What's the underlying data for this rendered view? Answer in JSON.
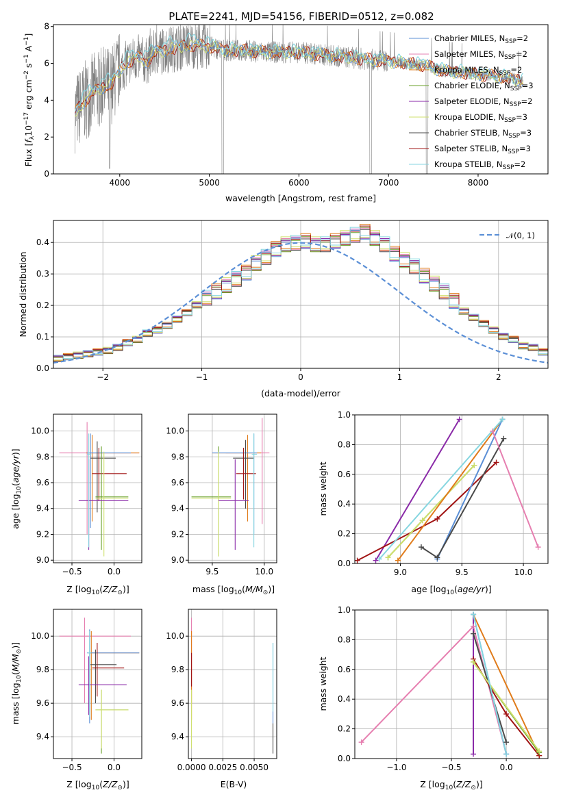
{
  "title": "PLATE=2241, MJD=54156, FIBERID=0512, z=0.082",
  "colors": {
    "Chabrier MILES": "#5b8fd6",
    "Salpeter MILES": "#e67fb0",
    "Kroupa MILES": "#e07b1a",
    "Chabrier ELODIE": "#6aa02a",
    "Salpeter ELODIE": "#8a2aa8",
    "Kroupa ELODIE": "#cfe06e",
    "Chabrier STELIB": "#4a4a4a",
    "Salpeter STELIB": "#a11414",
    "Kroupa STELIB": "#86d6e0",
    "data": "#808080",
    "normal": "#5b8fd6",
    "grid": "#b0b0b0"
  },
  "chart_data": [
    {
      "id": "spectrum",
      "type": "line",
      "xlabel": "wavelength [Angstrom, rest frame]",
      "ylabel": "Flux [f_λ10^-17 erg cm^-2 s^-1 A^-1]",
      "xlim": [
        3260,
        8780
      ],
      "ylim": [
        0,
        8.1
      ],
      "xticks": [
        "4000",
        "5000",
        "6000",
        "7000",
        "8000"
      ],
      "xtick_values": [
        4000,
        5000,
        6000,
        7000,
        8000
      ],
      "yticks": [
        "0",
        "2",
        "4",
        "6",
        "8"
      ],
      "ytick_values": [
        0,
        2,
        4,
        6,
        8
      ],
      "legend_placement": "right",
      "legend": [
        {
          "label": "Chabrier MILES, N",
          "sub": "SSP",
          "eq": "=2",
          "color_key": "Chabrier MILES"
        },
        {
          "label": "Salpeter MILES, N",
          "sub": "SSP",
          "eq": "=2",
          "color_key": "Salpeter MILES"
        },
        {
          "label": "Kroupa MILES, N",
          "sub": "SSP",
          "eq": "=2",
          "color_key": "Kroupa MILES"
        },
        {
          "label": "Chabrier ELODIE, N",
          "sub": "SSP",
          "eq": "=3",
          "color_key": "Chabrier ELODIE"
        },
        {
          "label": "Salpeter ELODIE, N",
          "sub": "SSP",
          "eq": "=2",
          "color_key": "Salpeter ELODIE"
        },
        {
          "label": "Kroupa ELODIE, N",
          "sub": "SSP",
          "eq": "=3",
          "color_key": "Kroupa ELODIE"
        },
        {
          "label": "Chabrier STELIB, N",
          "sub": "SSP",
          "eq": "=3",
          "color_key": "Chabrier STELIB"
        },
        {
          "label": "Salpeter STELIB, N",
          "sub": "SSP",
          "eq": "=3",
          "color_key": "Salpeter STELIB"
        },
        {
          "label": "Kroupa STELIB, N",
          "sub": "SSP",
          "eq": "=2",
          "color_key": "Kroupa STELIB"
        }
      ],
      "continuum": {
        "x": [
          3500,
          3600,
          3700,
          3800,
          3900,
          4000,
          4100,
          4200,
          4300,
          4400,
          4600,
          4800,
          5000,
          5200,
          5400,
          5600,
          5800,
          6000,
          6200,
          6400,
          6600,
          6800,
          7000,
          7200,
          7400,
          7600,
          7800,
          8000,
          8200,
          8400,
          8500
        ],
        "y": [
          3.3,
          3.9,
          4.4,
          4.7,
          4.8,
          5.6,
          6.1,
          6.3,
          6.1,
          6.6,
          6.8,
          7.0,
          6.9,
          6.7,
          6.7,
          6.6,
          6.6,
          6.6,
          6.5,
          6.4,
          6.3,
          6.2,
          6.1,
          6.0,
          5.9,
          5.6,
          5.5,
          5.4,
          5.3,
          5.15,
          5.0
        ]
      }
    },
    {
      "id": "residuals",
      "type": "bar",
      "xlabel": "(data-model)/error",
      "ylabel": "Normed distribution",
      "xlim": [
        -2.5,
        2.5
      ],
      "ylim": [
        0,
        0.47
      ],
      "xticks": [
        "−2",
        "−1",
        "0",
        "1",
        "2"
      ],
      "xtick_values": [
        -2,
        -1,
        0,
        1,
        2
      ],
      "yticks": [
        "0.0",
        "0.1",
        "0.2",
        "0.3",
        "0.4"
      ],
      "ytick_values": [
        0,
        0.1,
        0.2,
        0.3,
        0.4
      ],
      "legend_placement": "top-right",
      "legend_label": "𝒩(0, 1)",
      "bin_edges_start": -2.5,
      "bin_width": 0.1,
      "base": [
        0.03,
        0.035,
        0.04,
        0.045,
        0.05,
        0.055,
        0.065,
        0.08,
        0.09,
        0.11,
        0.12,
        0.135,
        0.155,
        0.175,
        0.2,
        0.22,
        0.24,
        0.26,
        0.28,
        0.3,
        0.33,
        0.35,
        0.375,
        0.39,
        0.395,
        0.4,
        0.39,
        0.39,
        0.4,
        0.41,
        0.42,
        0.43,
        0.41,
        0.39,
        0.36,
        0.34,
        0.32,
        0.29,
        0.265,
        0.24,
        0.21,
        0.18,
        0.16,
        0.14,
        0.12,
        0.1,
        0.09,
        0.07,
        0.065,
        0.05
      ]
    },
    {
      "id": "age-vs-Z",
      "type": "scatter",
      "xlabel": "Z [log10(Z/Z☉)]",
      "ylabel": "age [log10(age/yr)]",
      "xlim": [
        -0.72,
        0.33
      ],
      "ylim": [
        8.98,
        10.13
      ],
      "xticks": [
        "−0.5",
        "0.0"
      ],
      "xtick_values": [
        -0.5,
        0.0
      ],
      "yticks": [
        "9.0",
        "9.2",
        "9.4",
        "9.6",
        "9.8",
        "10.0"
      ],
      "ytick_values": [
        9.0,
        9.2,
        9.4,
        9.6,
        9.8,
        10.0
      ],
      "crosses": [
        {
          "k": "Salpeter MILES",
          "x": -0.32,
          "y": 9.83,
          "xe": [
            -0.65,
            0.3
          ],
          "ye": [
            9.2,
            10.07
          ]
        },
        {
          "k": "Kroupa MILES",
          "x": -0.26,
          "y": 9.83,
          "xe": [
            -0.33,
            0.3
          ],
          "ye": [
            9.3,
            9.97
          ]
        },
        {
          "k": "Chabrier MILES",
          "x": -0.28,
          "y": 9.83,
          "xe": [
            -0.32,
            0.2
          ],
          "ye": [
            9.25,
            9.98
          ]
        },
        {
          "k": "Chabrier STELIB",
          "x": -0.2,
          "y": 9.79,
          "xe": [
            -0.28,
            0.02
          ],
          "ye": [
            9.37,
            9.92
          ]
        },
        {
          "k": "Salpeter STELIB",
          "x": -0.18,
          "y": 9.67,
          "xe": [
            -0.26,
            0.15
          ],
          "ye": [
            9.46,
            9.87
          ]
        },
        {
          "k": "Chabrier ELODIE",
          "x": -0.15,
          "y": 9.49,
          "xe": [
            -0.22,
            0.17
          ],
          "ye": [
            9.08,
            9.88
          ]
        },
        {
          "k": "Kroupa ELODIE",
          "x": -0.12,
          "y": 9.48,
          "xe": [
            -0.22,
            0.17
          ],
          "ye": [
            9.03,
            9.84
          ]
        },
        {
          "k": "Salpeter ELODIE",
          "x": -0.3,
          "y": 9.46,
          "xe": [
            -0.42,
            0.17
          ],
          "ye": [
            9.08,
            9.78
          ]
        },
        {
          "k": "Kroupa STELIB",
          "x": -0.3,
          "y": 9.82,
          "xe": [
            -0.32,
            -0.27
          ],
          "ye": [
            9.1,
            9.98
          ]
        }
      ]
    },
    {
      "id": "age-vs-mass",
      "type": "scatter",
      "xlabel": "mass [log10(M/M☉)]",
      "ylabel": "",
      "xlim": [
        9.27,
        10.12
      ],
      "ylim": [
        8.98,
        10.13
      ],
      "xticks": [
        "9.5",
        "10.0"
      ],
      "xtick_values": [
        9.5,
        10.0
      ],
      "yticks": [
        "9.0",
        "9.2",
        "9.4",
        "9.6",
        "9.8",
        "10.0"
      ],
      "ytick_values": [
        9.0,
        9.2,
        9.4,
        9.6,
        9.8,
        10.0
      ],
      "crosses": [
        {
          "k": "Salpeter MILES",
          "x": 9.98,
          "y": 9.83,
          "xe": [
            9.63,
            10.05
          ],
          "ye": [
            9.28,
            10.1
          ]
        },
        {
          "k": "Kroupa MILES",
          "x": 9.84,
          "y": 9.83,
          "xe": [
            9.5,
            9.97
          ],
          "ye": [
            9.3,
            9.97
          ]
        },
        {
          "k": "Chabrier MILES",
          "x": 9.9,
          "y": 9.83,
          "xe": [
            9.5,
            9.93
          ],
          "ye": [
            9.2,
            9.98
          ]
        },
        {
          "k": "Chabrier STELIB",
          "x": 9.82,
          "y": 9.79,
          "xe": [
            9.7,
            9.9
          ],
          "ye": [
            9.4,
            9.93
          ]
        },
        {
          "k": "Salpeter STELIB",
          "x": 9.8,
          "y": 9.67,
          "xe": [
            9.73,
            9.92
          ],
          "ye": [
            9.47,
            9.87
          ]
        },
        {
          "k": "Chabrier ELODIE",
          "x": 9.56,
          "y": 9.49,
          "xe": [
            9.3,
            9.68
          ],
          "ye": [
            9.03,
            9.88
          ]
        },
        {
          "k": "Kroupa ELODIE",
          "x": 9.56,
          "y": 9.48,
          "xe": [
            9.3,
            9.68
          ],
          "ye": [
            9.03,
            9.84
          ]
        },
        {
          "k": "Salpeter ELODIE",
          "x": 9.72,
          "y": 9.46,
          "xe": [
            9.56,
            9.85
          ],
          "ye": [
            9.08,
            9.78
          ]
        },
        {
          "k": "Kroupa STELIB",
          "x": 9.9,
          "y": 9.82,
          "xe": [
            9.88,
            9.93
          ],
          "ye": [
            9.1,
            9.98
          ]
        }
      ]
    },
    {
      "id": "weight-vs-age",
      "type": "line",
      "xlabel": "age [log10(age/yr)]",
      "ylabel": "mass weight",
      "xlim": [
        8.63,
        10.2
      ],
      "ylim": [
        0,
        1.0
      ],
      "xticks": [
        "9.0",
        "9.5",
        "10.0"
      ],
      "xtick_values": [
        9.0,
        9.5,
        10.0
      ],
      "yticks": [
        "0.0",
        "0.2",
        "0.4",
        "0.6",
        "0.8",
        "1.0"
      ],
      "ytick_values": [
        0,
        0.2,
        0.4,
        0.6,
        0.8,
        1.0
      ],
      "series": [
        {
          "k": "Salpeter ELODIE",
          "x": [
            8.8,
            9.48
          ],
          "y": [
            0.02,
            0.97
          ]
        },
        {
          "k": "Salpeter STELIB",
          "x": [
            8.65,
            9.3,
            9.78
          ],
          "y": [
            0.02,
            0.3,
            0.68
          ]
        },
        {
          "k": "Chabrier ELODIE",
          "x": [
            8.9,
            9.18,
            9.6
          ],
          "y": [
            0.04,
            0.29,
            0.66
          ]
        },
        {
          "k": "Kroupa ELODIE",
          "x": [
            8.9,
            9.18,
            9.6
          ],
          "y": [
            0.04,
            0.29,
            0.66
          ]
        },
        {
          "k": "Kroupa MILES",
          "x": [
            8.98,
            9.83
          ],
          "y": [
            0.02,
            0.97
          ]
        },
        {
          "k": "Chabrier MILES",
          "x": [
            9.3,
            9.83
          ],
          "y": [
            0.03,
            0.97
          ]
        },
        {
          "k": "Chabrier STELIB",
          "x": [
            9.17,
            9.3,
            9.84
          ],
          "y": [
            0.11,
            0.04,
            0.84
          ]
        },
        {
          "k": "Salpeter MILES",
          "x": [
            9.75,
            10.12
          ],
          "y": [
            0.89,
            0.11
          ]
        },
        {
          "k": "Kroupa STELIB",
          "x": [
            8.83,
            9.83
          ],
          "y": [
            0.03,
            0.97
          ]
        }
      ]
    },
    {
      "id": "mass-vs-Z",
      "type": "scatter",
      "xlabel": "Z [log10(Z/Z☉)]",
      "ylabel": "mass [log10(M/M☉)]",
      "xlim": [
        -0.72,
        0.33
      ],
      "ylim": [
        9.27,
        10.16
      ],
      "xticks": [
        "−0.5",
        "0.0"
      ],
      "xtick_values": [
        -0.5,
        0.0
      ],
      "yticks": [
        "9.4",
        "9.6",
        "9.8",
        "10.0"
      ],
      "ytick_values": [
        9.4,
        9.6,
        9.8,
        10.0
      ],
      "crosses": [
        {
          "k": "Salpeter MILES",
          "x": -0.35,
          "y": 10.0,
          "xe": [
            -0.65,
            0.2
          ],
          "ye": [
            9.6,
            10.11
          ]
        },
        {
          "k": "Kroupa MILES",
          "x": -0.27,
          "y": 9.9,
          "xe": [
            -0.3,
            0.3
          ],
          "ye": [
            9.5,
            10.03
          ]
        },
        {
          "k": "Chabrier MILES",
          "x": -0.29,
          "y": 9.9,
          "xe": [
            -0.32,
            0.3
          ],
          "ye": [
            9.48,
            10.04
          ]
        },
        {
          "k": "Chabrier STELIB",
          "x": -0.22,
          "y": 9.83,
          "xe": [
            -0.28,
            0.03
          ],
          "ye": [
            9.6,
            9.92
          ]
        },
        {
          "k": "Salpeter STELIB",
          "x": -0.2,
          "y": 9.81,
          "xe": [
            -0.26,
            0.12
          ],
          "ye": [
            9.64,
            9.96
          ]
        },
        {
          "k": "Chabrier ELODIE",
          "x": -0.15,
          "y": 9.56,
          "xe": [
            -0.22,
            0.17
          ],
          "ye": [
            9.3,
            9.68
          ]
        },
        {
          "k": "Kroupa ELODIE",
          "x": -0.15,
          "y": 9.56,
          "xe": [
            -0.22,
            0.17
          ],
          "ye": [
            9.33,
            9.68
          ]
        },
        {
          "k": "Salpeter ELODIE",
          "x": -0.3,
          "y": 9.71,
          "xe": [
            -0.42,
            0.15
          ],
          "ye": [
            9.53,
            9.88
          ]
        },
        {
          "k": "Kroupa STELIB",
          "x": -0.29,
          "y": 9.9,
          "xe": [
            -0.31,
            -0.27
          ],
          "ye": [
            9.52,
            10.03
          ]
        }
      ]
    },
    {
      "id": "mass-vs-EBV",
      "type": "scatter",
      "xlabel": "E(B-V)",
      "ylabel": "",
      "xlim": [
        -0.00025,
        0.0068
      ],
      "ylim": [
        9.27,
        10.16
      ],
      "xticks": [
        "0.0000",
        "0.0025",
        "0.0050"
      ],
      "xtick_values": [
        0,
        0.0025,
        0.005
      ],
      "yticks": [
        "9.4",
        "9.6",
        "9.8",
        "10.0"
      ],
      "ytick_values": [
        9.4,
        9.6,
        9.8,
        10.0
      ],
      "crosses": [
        {
          "k": "Salpeter MILES",
          "x": 0.0,
          "y": 10.0,
          "xe": [
            0.0,
            0.0
          ],
          "ye": [
            9.6,
            10.11
          ]
        },
        {
          "k": "Kroupa MILES",
          "x": 0.0,
          "y": 9.9,
          "xe": [
            0.0,
            0.0
          ],
          "ye": [
            9.5,
            10.03
          ]
        },
        {
          "k": "Kroupa ELODIE",
          "x": 0.0,
          "y": 9.56,
          "xe": [
            0.0,
            0.0
          ],
          "ye": [
            9.33,
            9.68
          ]
        },
        {
          "k": "Salpeter STELIB",
          "x": 0.0,
          "y": 9.81,
          "xe": [
            0.0,
            0.0
          ],
          "ye": [
            9.7,
            9.9
          ]
        },
        {
          "k": "Chabrier MILES",
          "x": 0.0065,
          "y": 9.9,
          "xe": [
            0.0065,
            0.0065
          ],
          "ye": [
            9.48,
            9.96
          ]
        },
        {
          "k": "Kroupa STELIB",
          "x": 0.0065,
          "y": 9.7,
          "xe": [
            0.0065,
            0.0065
          ],
          "ye": [
            9.55,
            9.96
          ]
        },
        {
          "k": "Chabrier STELIB",
          "x": 0.0065,
          "y": 9.4,
          "xe": [
            0.0065,
            0.0065
          ],
          "ye": [
            9.3,
            9.48
          ]
        }
      ]
    },
    {
      "id": "weight-vs-Z",
      "type": "line",
      "xlabel": "Z [log10(Z/Z☉)]",
      "ylabel": "mass weight",
      "xlim": [
        -1.38,
        0.38
      ],
      "ylim": [
        0,
        1.0
      ],
      "xticks": [
        "−1.0",
        "−0.5",
        "0.0"
      ],
      "xtick_values": [
        -1.0,
        -0.5,
        0.0
      ],
      "yticks": [
        "0.0",
        "0.2",
        "0.4",
        "0.6",
        "0.8",
        "1.0"
      ],
      "ytick_values": [
        0,
        0.2,
        0.4,
        0.6,
        0.8,
        1.0
      ],
      "series": [
        {
          "k": "Salpeter MILES",
          "x": [
            -1.32,
            -0.3,
            0.0
          ],
          "y": [
            0.11,
            0.89,
            0.03
          ]
        },
        {
          "k": "Salpeter ELODIE",
          "x": [
            -0.3,
            -0.3
          ],
          "y": [
            0.03,
            0.97
          ]
        },
        {
          "k": "Kroupa MILES",
          "x": [
            -0.3,
            0.3
          ],
          "y": [
            0.97,
            0.02
          ]
        },
        {
          "k": "Chabrier MILES",
          "x": [
            -0.3,
            0.0
          ],
          "y": [
            0.97,
            0.03
          ]
        },
        {
          "k": "Chabrier STELIB",
          "x": [
            -0.3,
            0.0
          ],
          "y": [
            0.84,
            0.11
          ]
        },
        {
          "k": "Salpeter STELIB",
          "x": [
            -0.3,
            0.0,
            0.3
          ],
          "y": [
            0.67,
            0.3,
            0.02
          ]
        },
        {
          "k": "Chabrier ELODIE",
          "x": [
            -0.3,
            0.3
          ],
          "y": [
            0.65,
            0.04
          ]
        },
        {
          "k": "Kroupa ELODIE",
          "x": [
            -0.3,
            0.3
          ],
          "y": [
            0.65,
            0.05
          ]
        },
        {
          "k": "Kroupa STELIB",
          "x": [
            -0.3,
            0.0
          ],
          "y": [
            0.97,
            0.03
          ]
        }
      ]
    }
  ]
}
